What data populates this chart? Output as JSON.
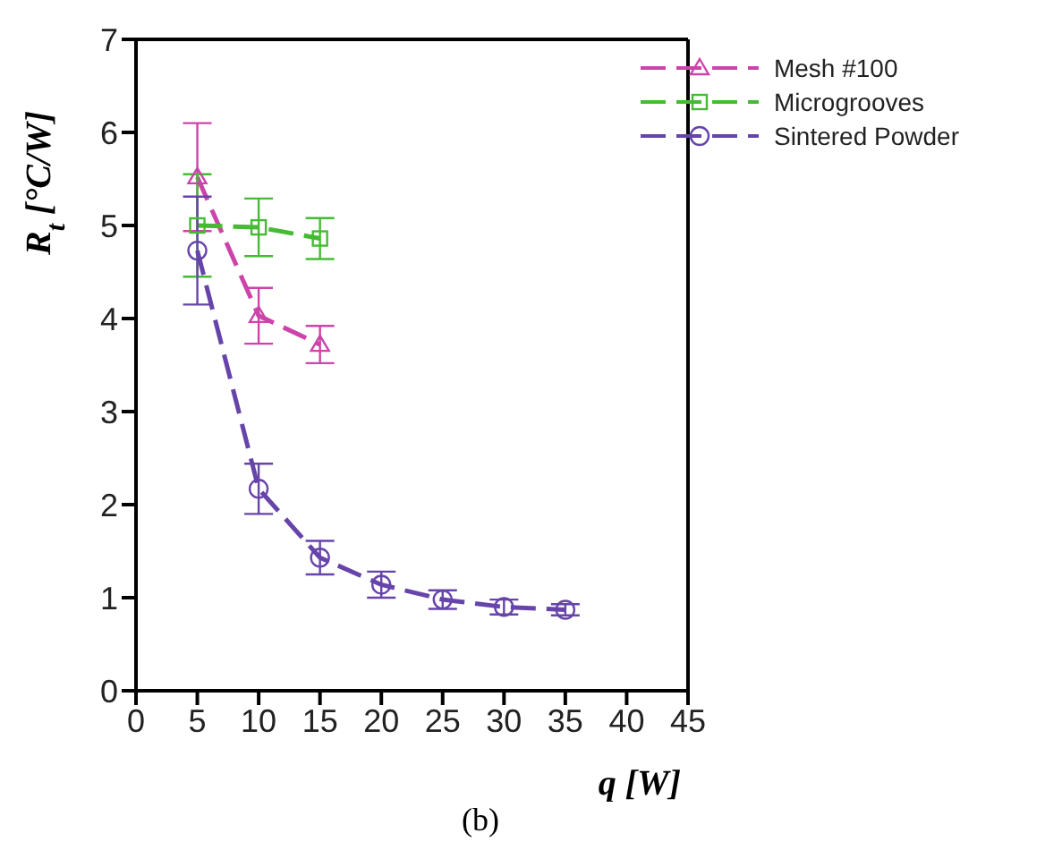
{
  "chart_data": {
    "type": "line",
    "xlabel": "q [W]",
    "ylabel": "R$_{t}$ [°C/W]",
    "xlim": [
      0,
      45
    ],
    "xticks": [
      0,
      5,
      10,
      15,
      20,
      25,
      30,
      35,
      40,
      45
    ],
    "ylim": [
      0,
      7
    ],
    "yticks": [
      0,
      1,
      2,
      3,
      4,
      5,
      6,
      7
    ],
    "grid": false,
    "legend": "top right",
    "line_style": "dashed",
    "series": [
      {
        "name": "Mesh #100",
        "color": "#cc44aa",
        "marker": "triangle",
        "x": [
          5,
          10,
          15
        ],
        "values": [
          5.52,
          4.03,
          3.72
        ],
        "errors": [
          0.58,
          0.3,
          0.2
        ]
      },
      {
        "name": "Microgrooves",
        "color": "#44bb33",
        "marker": "square",
        "x": [
          5,
          10,
          15
        ],
        "values": [
          5.0,
          4.98,
          4.86
        ],
        "errors": [
          0.55,
          0.31,
          0.22
        ]
      },
      {
        "name": "Sintered Powder",
        "color": "#6644aa",
        "marker": "circle",
        "x": [
          5,
          10,
          15,
          20,
          25,
          30,
          35
        ],
        "values": [
          4.73,
          2.17,
          1.43,
          1.14,
          0.98,
          0.9,
          0.87
        ],
        "errors": [
          0.58,
          0.27,
          0.18,
          0.14,
          0.1,
          0.08,
          0.06
        ]
      }
    ],
    "annotations": [
      "(b)"
    ]
  }
}
